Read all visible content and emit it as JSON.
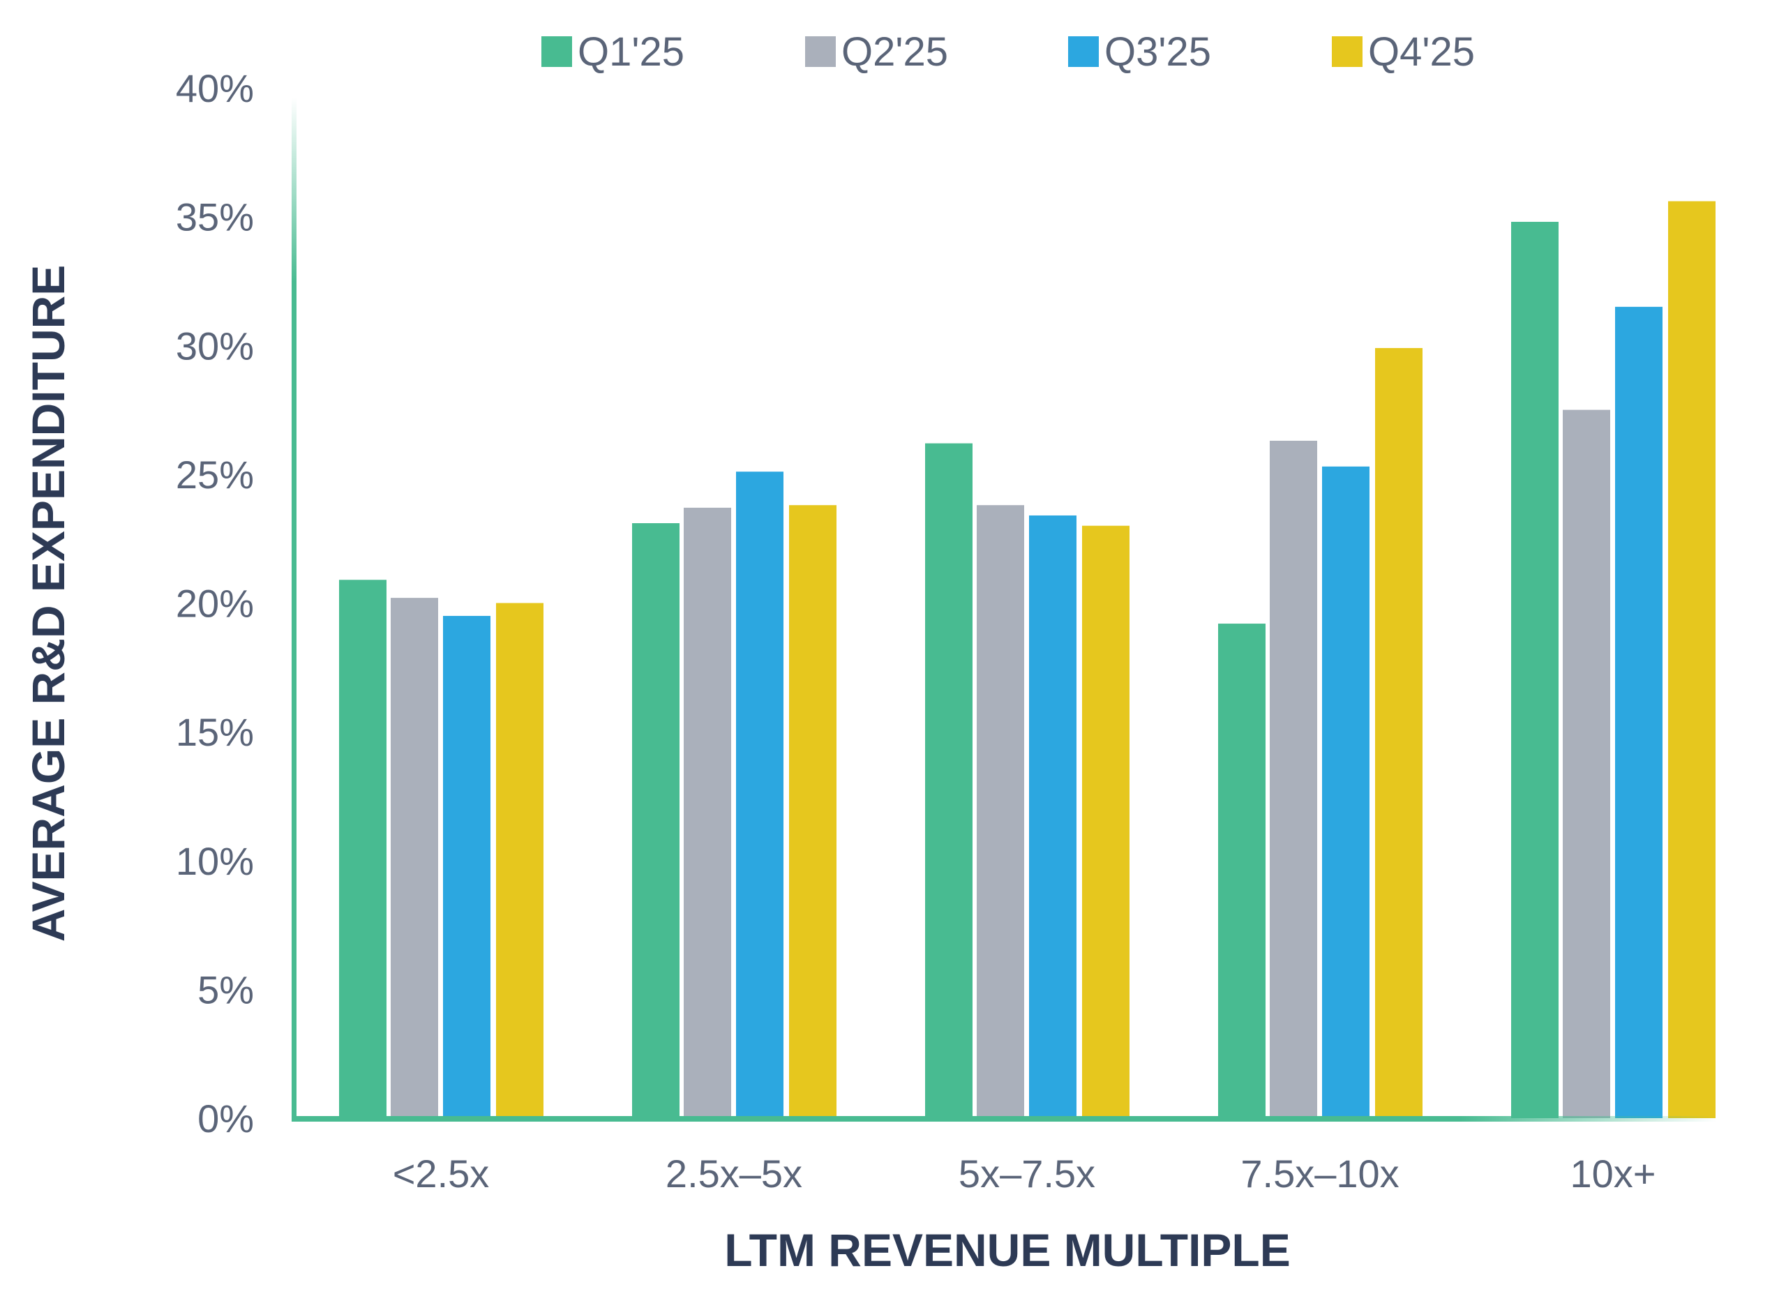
{
  "chart_data": {
    "type": "bar",
    "title": "",
    "xlabel": "LTM REVENUE MULTIPLE",
    "ylabel": "AVERAGE R&D EXPENDITURE",
    "ylim": [
      0,
      40
    ],
    "yticks": [
      "0%",
      "5%",
      "10%",
      "15%",
      "20%",
      "25%",
      "30%",
      "35%",
      "40%"
    ],
    "ytick_values": [
      0,
      5,
      10,
      15,
      20,
      25,
      30,
      35,
      40
    ],
    "grid": false,
    "legend_position": "top-center",
    "categories": [
      "<2.5x",
      "2.5x–5x",
      "5x–7.5x",
      "7.5x–10x",
      "10x+"
    ],
    "series": [
      {
        "name": "Q1'25",
        "color": "#48BB91",
        "values": [
          20.9,
          23.1,
          26.2,
          19.2,
          34.8
        ]
      },
      {
        "name": "Q2'25",
        "color": "#AAB0BB",
        "values": [
          20.2,
          23.7,
          23.8,
          26.3,
          27.5
        ]
      },
      {
        "name": "Q3'25",
        "color": "#2CA7E0",
        "values": [
          19.5,
          25.1,
          23.4,
          25.3,
          31.5
        ]
      },
      {
        "name": "Q4'25",
        "color": "#E6C71E",
        "values": [
          20.0,
          23.8,
          23.0,
          29.9,
          35.6
        ]
      }
    ],
    "axis_color": "#48BB91"
  }
}
